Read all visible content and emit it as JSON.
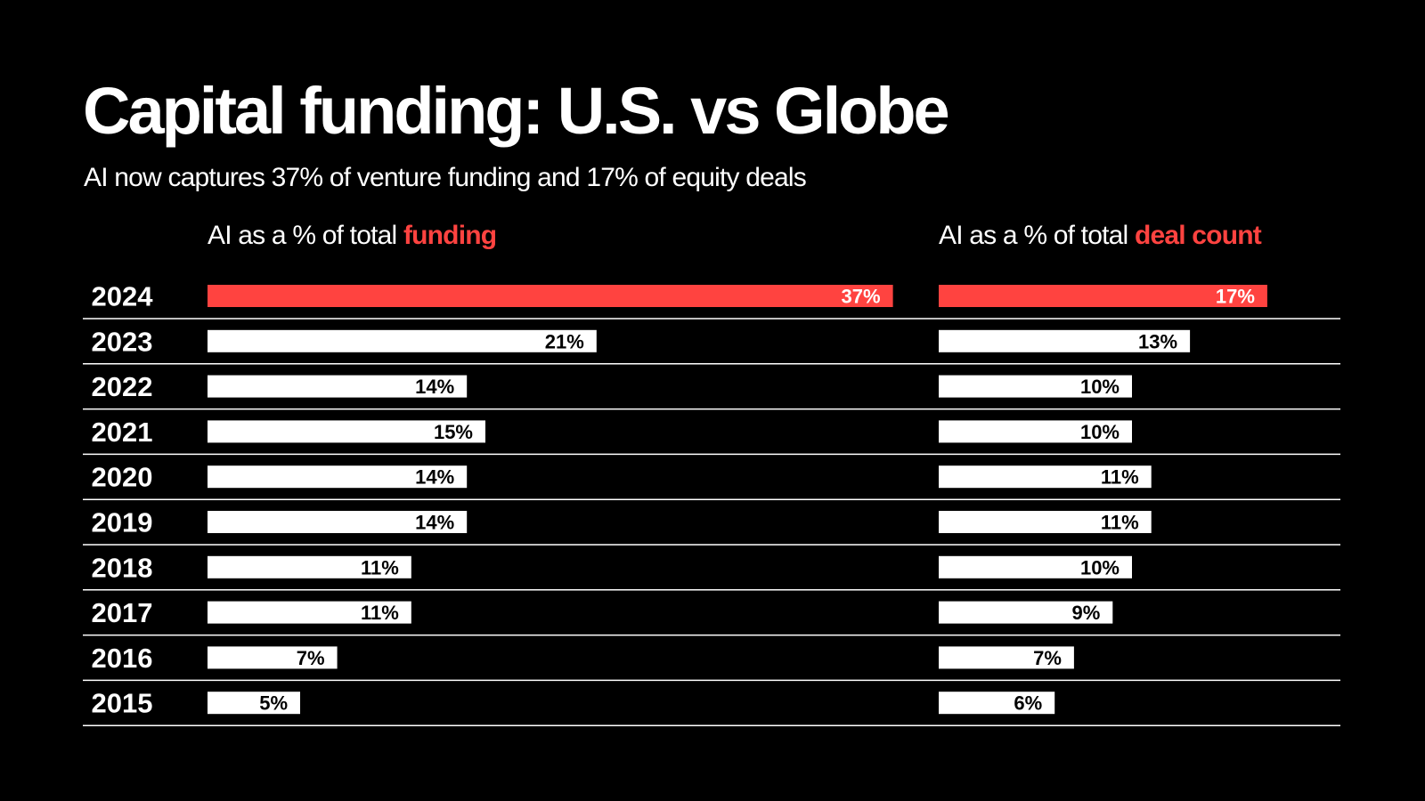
{
  "title": "Capital funding: U.S. vs Globe",
  "subtitle": "AI now captures 37% of venture funding and 17% of equity deals",
  "colors": {
    "background": "#000000",
    "highlight": "#ff4340",
    "bar": "#ffffff",
    "text": "#ffffff",
    "bar_label": "#000000",
    "divider": "#ffffff"
  },
  "panels": {
    "funding": {
      "prefix": "AI as a % of total ",
      "highlight": "funding"
    },
    "deals": {
      "prefix": "AI as a % of total ",
      "highlight": "deal count"
    }
  },
  "chart_data": {
    "type": "bar",
    "orientation": "horizontal",
    "categories": [
      "2024",
      "2023",
      "2022",
      "2021",
      "2020",
      "2019",
      "2018",
      "2017",
      "2016",
      "2015"
    ],
    "highlight_category": "2024",
    "series": [
      {
        "name": "AI as a % of total funding",
        "values": [
          37,
          21,
          14,
          15,
          14,
          14,
          11,
          11,
          7,
          5
        ],
        "labels": [
          "37%",
          "21%",
          "14%",
          "15%",
          "14%",
          "14%",
          "11%",
          "11%",
          "7%",
          "5%"
        ]
      },
      {
        "name": "AI as a % of total deal count",
        "values": [
          17,
          13,
          10,
          10,
          11,
          11,
          10,
          9,
          7,
          6
        ],
        "labels": [
          "17%",
          "13%",
          "10%",
          "10%",
          "11%",
          "11%",
          "10%",
          "9%",
          "7%",
          "6%"
        ]
      }
    ]
  }
}
